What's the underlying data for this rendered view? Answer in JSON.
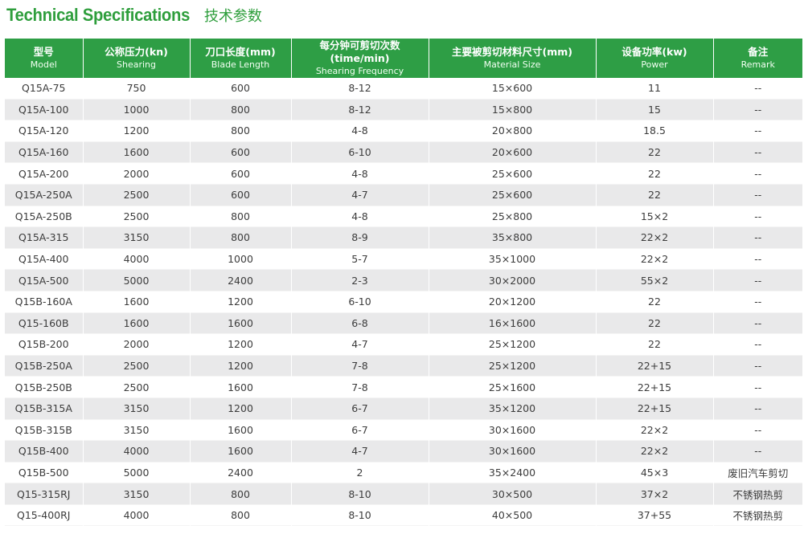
{
  "title": {
    "en": "Technical Specifications",
    "zh": "技术参数"
  },
  "columns": [
    {
      "zh": "型号",
      "en": "Model"
    },
    {
      "zh": "公称压力(kn)",
      "en": "Shearing"
    },
    {
      "zh": "刀口长度(mm)",
      "en": "Blade Length"
    },
    {
      "zh": "每分钟可剪切次数(time/min)",
      "en": "Shearing Frequency"
    },
    {
      "zh": "主要被剪切材料尺寸(mm)",
      "en": "Material Size"
    },
    {
      "zh": "设备功率(kw)",
      "en": "Power"
    },
    {
      "zh": "备注",
      "en": "Remark"
    }
  ],
  "rows": [
    [
      "Q15A-75",
      "750",
      "600",
      "8-12",
      "15×600",
      "11",
      "--"
    ],
    [
      "Q15A-100",
      "1000",
      "800",
      "8-12",
      "15×800",
      "15",
      "--"
    ],
    [
      "Q15A-120",
      "1200",
      "800",
      "4-8",
      "20×800",
      "18.5",
      "--"
    ],
    [
      "Q15A-160",
      "1600",
      "600",
      "6-10",
      "20×600",
      "22",
      "--"
    ],
    [
      "Q15A-200",
      "2000",
      "600",
      "4-8",
      "25×600",
      "22",
      "--"
    ],
    [
      "Q15A-250A",
      "2500",
      "600",
      "4-7",
      "25×600",
      "22",
      "--"
    ],
    [
      "Q15A-250B",
      "2500",
      "800",
      "4-8",
      "25×800",
      "15×2",
      "--"
    ],
    [
      "Q15A-315",
      "3150",
      "800",
      "8-9",
      "35×800",
      "22×2",
      "--"
    ],
    [
      "Q15A-400",
      "4000",
      "1000",
      "5-7",
      "35×1000",
      "22×2",
      "--"
    ],
    [
      "Q15A-500",
      "5000",
      "2400",
      "2-3",
      "30×2000",
      "55×2",
      "--"
    ],
    [
      "Q15B-160A",
      "1600",
      "1200",
      "6-10",
      "20×1200",
      "22",
      "--"
    ],
    [
      "Q15-160B",
      "1600",
      "1600",
      "6-8",
      "16×1600",
      "22",
      "--"
    ],
    [
      "Q15B-200",
      "2000",
      "1200",
      "4-7",
      "25×1200",
      "22",
      "--"
    ],
    [
      "Q15B-250A",
      "2500",
      "1200",
      "7-8",
      "25×1200",
      "22+15",
      "--"
    ],
    [
      "Q15B-250B",
      "2500",
      "1600",
      "7-8",
      "25×1600",
      "22+15",
      "--"
    ],
    [
      "Q15B-315A",
      "3150",
      "1200",
      "6-7",
      "35×1200",
      "22+15",
      "--"
    ],
    [
      "Q15B-315B",
      "3150",
      "1600",
      "6-7",
      "30×1600",
      "22×2",
      "--"
    ],
    [
      "Q15B-400",
      "4000",
      "1600",
      "4-7",
      "30×1600",
      "22×2",
      "--"
    ],
    [
      "Q15B-500",
      "5000",
      "2400",
      "2",
      "35×2400",
      "45×3",
      "废旧汽车剪切"
    ],
    [
      "Q15-315RJ",
      "3150",
      "800",
      "8-10",
      "30×500",
      "37×2",
      "不锈钢热剪"
    ],
    [
      "Q15-400RJ",
      "4000",
      "800",
      "8-10",
      "40×500",
      "37+55",
      "不锈钢热剪"
    ]
  ],
  "colors": {
    "header_bg": "#2e9e45",
    "title": "#2e9e3c",
    "stripe": "#e9e9ea"
  }
}
